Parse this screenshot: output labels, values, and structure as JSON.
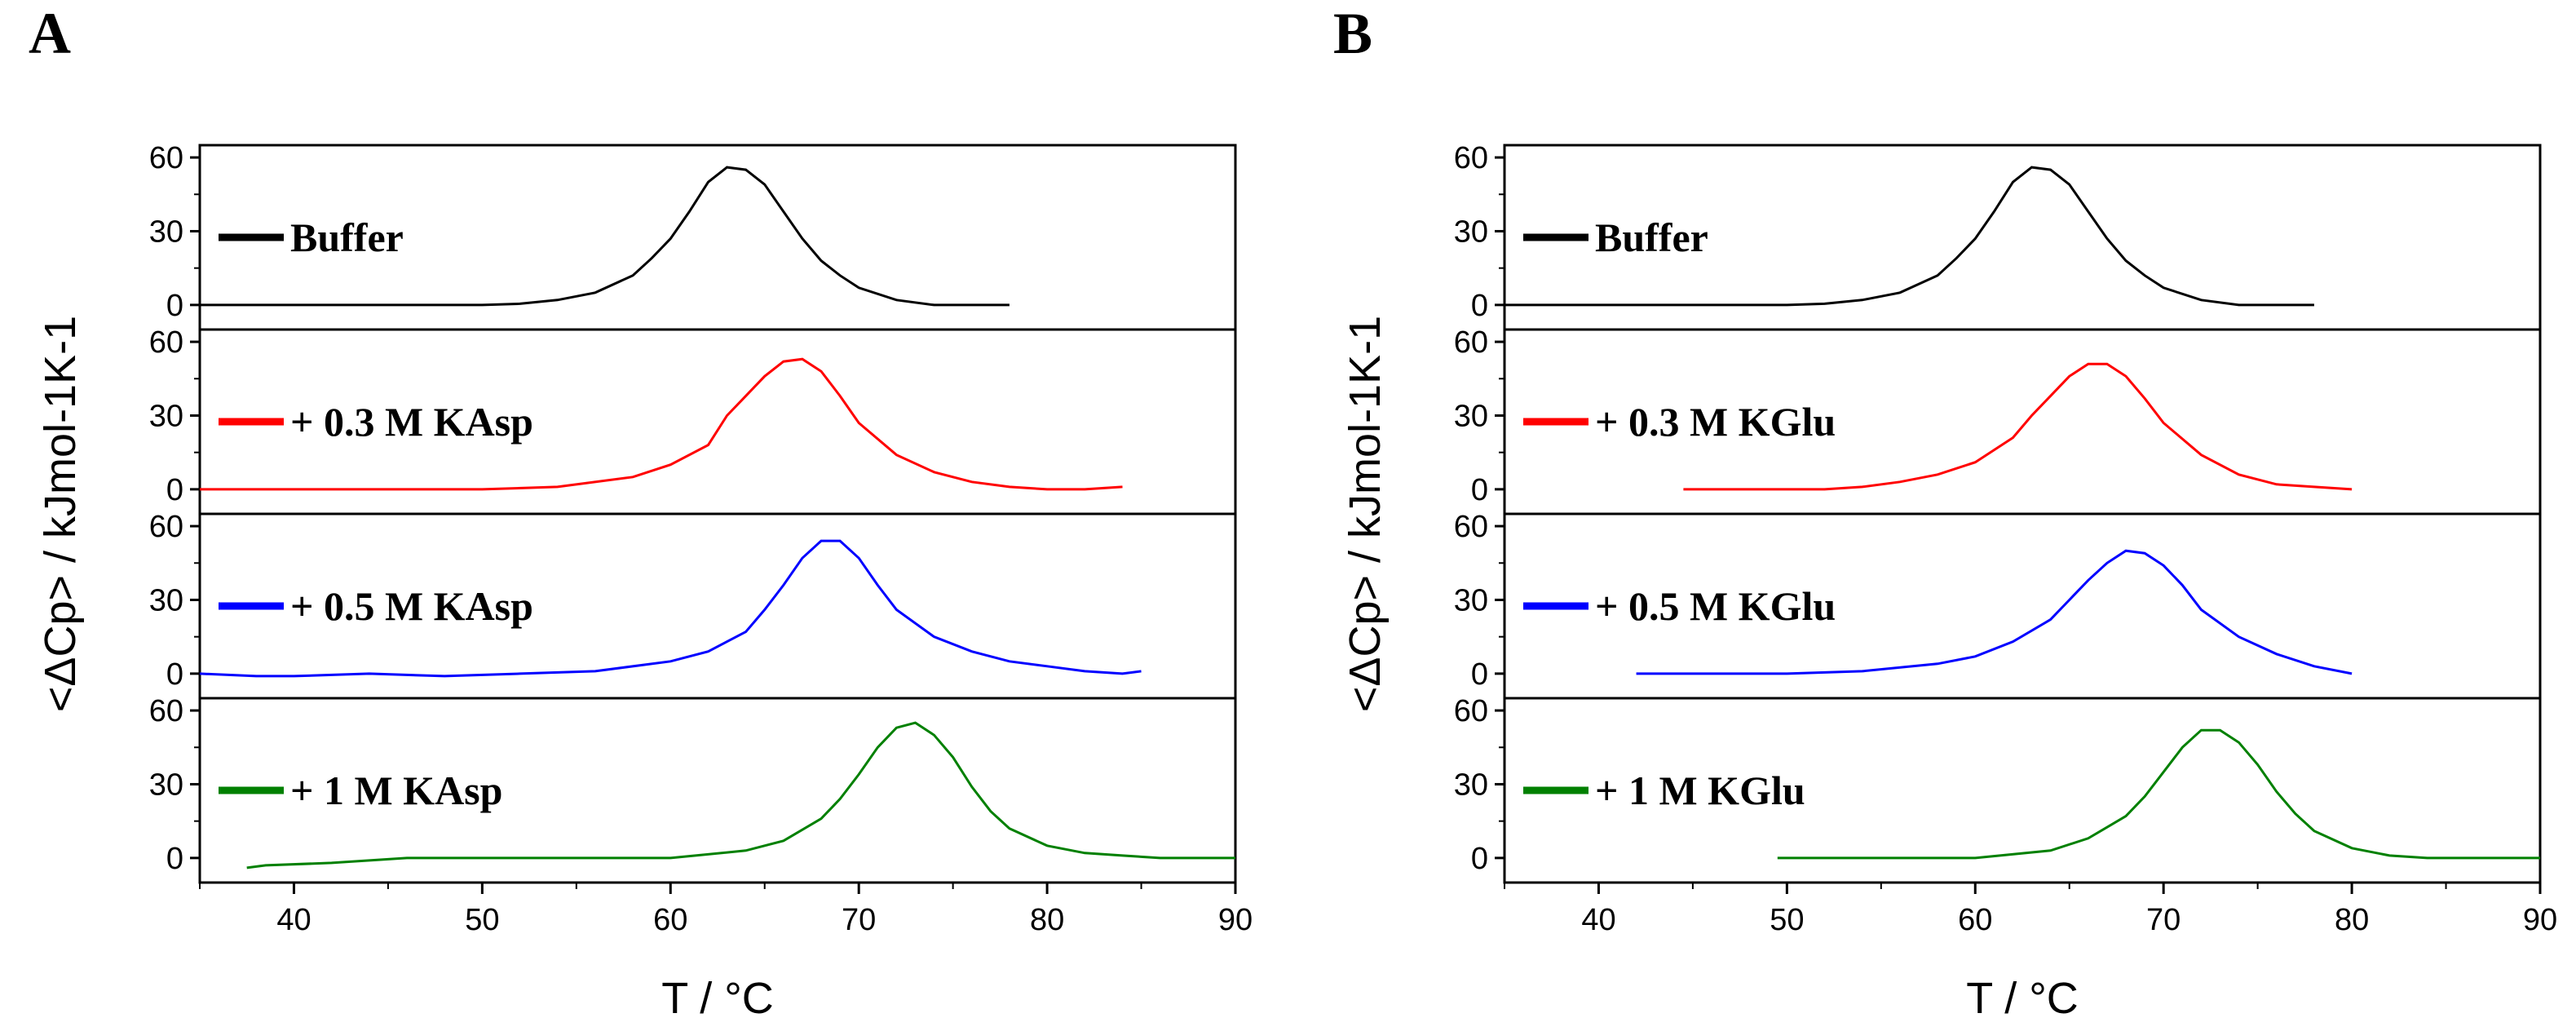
{
  "panels": [
    {
      "letter": "A",
      "xlabel": "T / °C",
      "ylabel": "<ΔCp> / kJmol-1K-1",
      "xticks": [
        "40",
        "50",
        "60",
        "70",
        "80",
        "90"
      ],
      "yticks": [
        "0",
        "30",
        "60"
      ]
    },
    {
      "letter": "B",
      "xlabel": "T / °C",
      "ylabel": "<ΔCp> / kJmol-1K-1",
      "xticks": [
        "40",
        "50",
        "60",
        "70",
        "80",
        "90"
      ],
      "yticks": [
        "0",
        "30",
        "60"
      ]
    }
  ],
  "chart_data": [
    {
      "type": "line",
      "title": "A",
      "xlabel": "T / °C",
      "ylabel": "<ΔCp> / kJmol-1K-1",
      "xlim": [
        35,
        90
      ],
      "ylim": [
        -10,
        65
      ],
      "layout": "stacked subplots, shared x-axis",
      "series": [
        {
          "name": "Buffer",
          "color": "#000000",
          "x": [
            35,
            40,
            45,
            50,
            52,
            54,
            56,
            58,
            59,
            60,
            61,
            62,
            63,
            64,
            65,
            66,
            67,
            68,
            69,
            70,
            72,
            74,
            76,
            78
          ],
          "y": [
            0,
            0,
            0,
            0,
            0.5,
            2,
            5,
            12,
            19,
            27,
            38,
            50,
            56,
            55,
            49,
            38,
            27,
            18,
            12,
            7,
            2,
            0,
            0,
            0
          ]
        },
        {
          "name": "+ 0.3 M KAsp",
          "color": "#ff0000",
          "x": [
            35,
            40,
            45,
            50,
            54,
            58,
            60,
            62,
            63,
            64,
            65,
            66,
            67,
            68,
            69,
            70,
            72,
            74,
            76,
            78,
            80,
            82,
            84
          ],
          "y": [
            0,
            0,
            0,
            0,
            1,
            5,
            10,
            18,
            30,
            38,
            46,
            52,
            53,
            48,
            38,
            27,
            14,
            7,
            3,
            1,
            0,
            0,
            1
          ]
        },
        {
          "name": "+ 0.5 M KAsp",
          "color": "#0000ff",
          "x": [
            35,
            38,
            40,
            44,
            48,
            52,
            56,
            60,
            62,
            64,
            65,
            66,
            67,
            68,
            69,
            70,
            71,
            72,
            74,
            76,
            78,
            80,
            82,
            84,
            85
          ],
          "y": [
            0,
            -1,
            -1,
            0,
            -1,
            0,
            1,
            5,
            9,
            17,
            26,
            36,
            47,
            54,
            54,
            47,
            36,
            26,
            15,
            9,
            5,
            3,
            1,
            0,
            1
          ]
        },
        {
          "name": "+ 1 M KAsp",
          "color": "#008000",
          "x": [
            37.5,
            38.5,
            42,
            46,
            50,
            55,
            60,
            64,
            66,
            68,
            69,
            70,
            71,
            72,
            73,
            74,
            75,
            76,
            77,
            78,
            80,
            82,
            84,
            86,
            90
          ],
          "y": [
            -4,
            -3,
            -2,
            0,
            0,
            0,
            0,
            3,
            7,
            16,
            24,
            34,
            45,
            53,
            55,
            50,
            41,
            29,
            19,
            12,
            5,
            2,
            1,
            0,
            0
          ]
        }
      ]
    },
    {
      "type": "line",
      "title": "B",
      "xlabel": "T / °C",
      "ylabel": "<ΔCp> / kJmol-1K-1",
      "xlim": [
        35,
        90
      ],
      "ylim": [
        -10,
        65
      ],
      "layout": "stacked subplots, shared x-axis",
      "series": [
        {
          "name": "Buffer",
          "color": "#000000",
          "x": [
            35,
            40,
            45,
            50,
            52,
            54,
            56,
            58,
            59,
            60,
            61,
            62,
            63,
            64,
            65,
            66,
            67,
            68,
            69,
            70,
            72,
            74,
            76,
            78
          ],
          "y": [
            0,
            0,
            0,
            0,
            0.5,
            2,
            5,
            12,
            19,
            27,
            38,
            50,
            56,
            55,
            49,
            38,
            27,
            18,
            12,
            7,
            2,
            0,
            0,
            0
          ]
        },
        {
          "name": "+ 0.3 M KGlu",
          "color": "#ff0000",
          "x": [
            44.5,
            48,
            52,
            54,
            56,
            58,
            60,
            62,
            63,
            64,
            65,
            66,
            67,
            68,
            69,
            70,
            72,
            74,
            76,
            78,
            80
          ],
          "y": [
            0,
            0,
            0,
            1,
            3,
            6,
            11,
            21,
            30,
            38,
            46,
            51,
            51,
            46,
            37,
            27,
            14,
            6,
            2,
            1,
            0
          ]
        },
        {
          "name": "+ 0.5 M KGlu",
          "color": "#0000ff",
          "x": [
            42,
            46,
            50,
            54,
            58,
            60,
            62,
            64,
            65,
            66,
            67,
            68,
            69,
            70,
            71,
            72,
            74,
            76,
            78,
            80
          ],
          "y": [
            0,
            0,
            0,
            1,
            4,
            7,
            13,
            22,
            30,
            38,
            45,
            50,
            49,
            44,
            36,
            26,
            15,
            8,
            3,
            0
          ]
        },
        {
          "name": "+ 1 M KGlu",
          "color": "#008000",
          "x": [
            49.5,
            52,
            56,
            60,
            64,
            66,
            68,
            69,
            70,
            71,
            72,
            73,
            74,
            75,
            76,
            77,
            78,
            80,
            82,
            84,
            86,
            90
          ],
          "y": [
            0,
            0,
            0,
            0,
            3,
            8,
            17,
            25,
            35,
            45,
            52,
            52,
            47,
            38,
            27,
            18,
            11,
            4,
            1,
            0,
            0,
            0
          ]
        }
      ]
    }
  ]
}
